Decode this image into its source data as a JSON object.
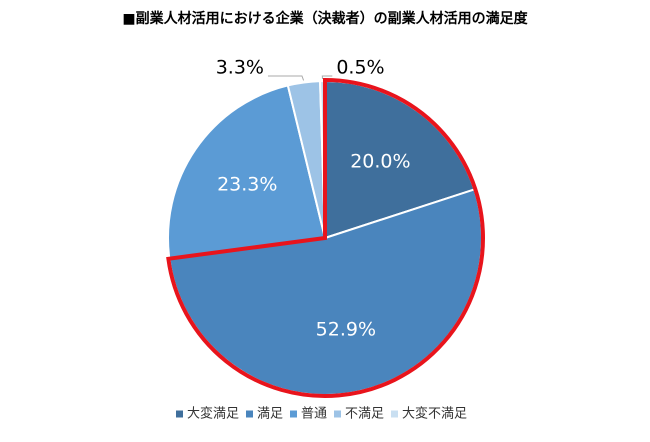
{
  "chart_data": {
    "type": "pie",
    "title": "■副業人材活用における企業（決裁者）の副業人材活用の満足度",
    "categories": [
      "大変満足",
      "満足",
      "普通",
      "不満足",
      "大変不満足"
    ],
    "values": [
      20.0,
      52.9,
      23.3,
      3.3,
      0.5
    ],
    "value_labels": [
      "20.0%",
      "52.9%",
      "23.3%",
      "3.3%",
      "0.5%"
    ],
    "colors": [
      "#3f6f9c",
      "#4a85bd",
      "#5b9bd5",
      "#9dc3e6",
      "#c9dff1"
    ],
    "legend": "bottom"
  }
}
